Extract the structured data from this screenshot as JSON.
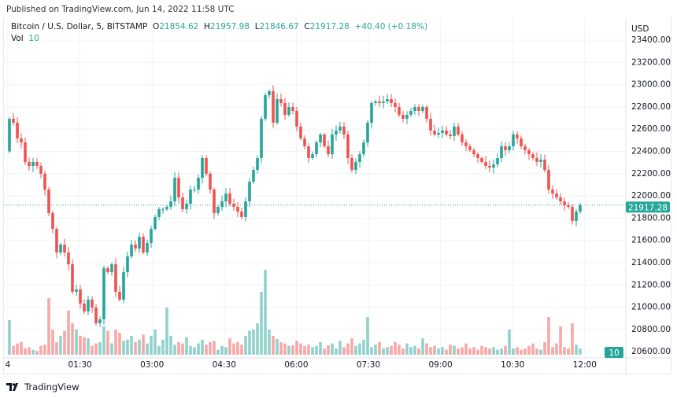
{
  "published": "Published on TradingView.com, Jun 14, 2022 11:58 UTC",
  "legend": {
    "symbol": "Bitcoin / U.S. Dollar, 5, BITSTAMP",
    "o_label": "O",
    "o": "21854.62",
    "h_label": "H",
    "h": "21957.98",
    "l_label": "L",
    "l": "21846.67",
    "c_label": "C",
    "c": "21917.28",
    "change": "+40.40 (+0.18%)"
  },
  "volume_legend": {
    "label": "Vol",
    "value": "10"
  },
  "currency": "USD",
  "last_price_label": "21917.28",
  "last_volume_label": "10",
  "footer": {
    "brand": "TradingView"
  },
  "colors": {
    "up": "#26a69a",
    "down": "#ef5350",
    "grid": "#f0f3fa",
    "accent": "#26a69a"
  },
  "chart_data": {
    "type": "candlestick",
    "interval_minutes": 5,
    "price_ticks": [
      "23400.00",
      "23200.00",
      "23000.00",
      "22800.00",
      "22600.00",
      "22400.00",
      "22200.00",
      "22000.00",
      "21800.00",
      "21600.00",
      "21400.00",
      "21200.00",
      "21000.00",
      "20800.00",
      "20600.00"
    ],
    "ylim": [
      20600,
      23400
    ],
    "time_ticks": [
      "4",
      "01:30",
      "03:00",
      "04:30",
      "06:00",
      "07:30",
      "09:00",
      "10:30",
      "12:00"
    ],
    "first_open": 22400,
    "closes": [
      22693,
      22658,
      22517,
      22481,
      22305,
      22269,
      22305,
      22269,
      22199,
      22057,
      21845,
      21704,
      21492,
      21563,
      21492,
      21386,
      21139,
      21160,
      21033,
      20962,
      21068,
      20997,
      20856,
      20891,
      21351,
      21315,
      21386,
      21139,
      21068,
      21315,
      21457,
      21563,
      21528,
      21633,
      21492,
      21577,
      21704,
      21810,
      21881,
      21881,
      21902,
      21951,
      22163,
      21987,
      21881,
      21930,
      22057,
      22057,
      22163,
      22340,
      22199,
      22057,
      21845,
      21902,
      21951,
      22022,
      21930,
      21902,
      21859,
      21810,
      21951,
      22128,
      22234,
      22340,
      22693,
      22905,
      22941,
      22658,
      22870,
      22835,
      22729,
      22799,
      22764,
      22623,
      22517,
      22446,
      22340,
      22375,
      22481,
      22552,
      22446,
      22375,
      22552,
      22587,
      22623,
      22552,
      22340,
      22234,
      22305,
      22375,
      22481,
      22658,
      22835,
      22849,
      22835,
      22849,
      22870,
      22835,
      22799,
      22729,
      22693,
      22729,
      22764,
      22799,
      22764,
      22799,
      22693,
      22587,
      22552,
      22566,
      22587,
      22552,
      22538,
      22623,
      22552,
      22481,
      22446,
      22411,
      22375,
      22340,
      22305,
      22269,
      22255,
      22283,
      22340,
      22446,
      22411,
      22446,
      22552,
      22517,
      22446,
      22411,
      22375,
      22340,
      22305,
      22326,
      22234,
      22057,
      22022,
      21987,
      21951,
      21916,
      21902,
      21775,
      21859,
      21917.28
    ],
    "volumes": [
      55,
      14,
      18,
      20,
      10,
      12,
      8,
      6,
      14,
      16,
      90,
      40,
      20,
      30,
      38,
      70,
      50,
      40,
      30,
      28,
      26,
      14,
      18,
      20,
      45,
      38,
      18,
      40,
      35,
      22,
      24,
      30,
      20,
      24,
      32,
      18,
      30,
      40,
      14,
      24,
      75,
      30,
      16,
      20,
      18,
      28,
      14,
      12,
      18,
      24,
      16,
      20,
      22,
      8,
      14,
      12,
      26,
      18,
      20,
      16,
      30,
      38,
      40,
      50,
      100,
      135,
      40,
      30,
      25,
      20,
      18,
      14,
      15,
      22,
      18,
      14,
      16,
      12,
      14,
      20,
      10,
      15,
      18,
      10,
      22,
      12,
      18,
      26,
      14,
      18,
      24,
      60,
      12,
      16,
      20,
      10,
      12,
      14,
      20,
      16,
      10,
      18,
      12,
      14,
      10,
      26,
      18,
      12,
      14,
      10,
      12,
      8,
      16,
      14,
      10,
      12,
      18,
      10,
      12,
      8,
      14,
      12,
      10,
      12,
      8,
      10,
      14,
      40,
      10,
      12,
      8,
      10,
      14,
      18,
      10,
      8,
      20,
      60,
      12,
      18,
      45,
      12,
      10,
      50,
      16,
      10
    ]
  }
}
